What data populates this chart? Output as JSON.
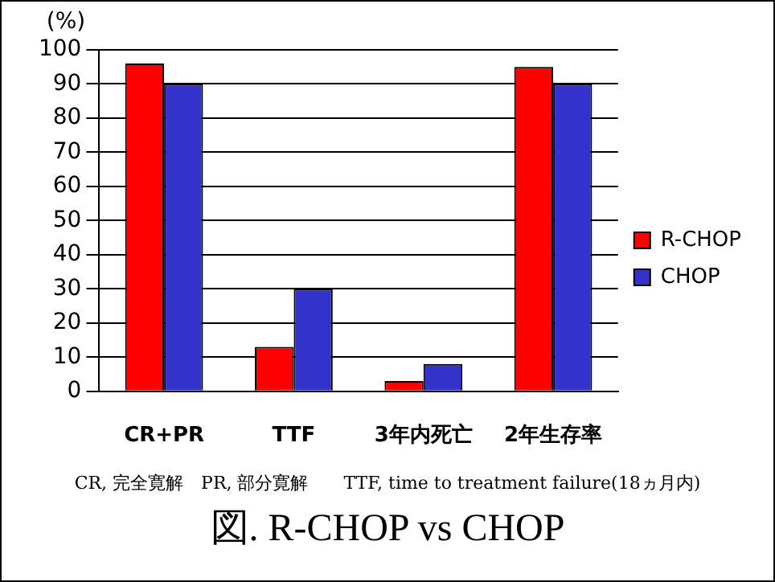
{
  "chart_data": {
    "type": "bar",
    "title": "図. R-CHOP vs CHOP",
    "ylabel": "(%)",
    "categories": [
      "CR+PR",
      "TTF",
      "3年内死亡",
      "2年生存率"
    ],
    "series": [
      {
        "name": "R-CHOP",
        "color": "#ff0000",
        "values": [
          96,
          13,
          3,
          95
        ]
      },
      {
        "name": "CHOP",
        "color": "#3333cc",
        "values": [
          90,
          30,
          8,
          90
        ]
      }
    ],
    "ylim": [
      0,
      100
    ],
    "yticks": [
      0,
      10,
      20,
      30,
      40,
      50,
      60,
      70,
      80,
      90,
      100
    ],
    "grid": "y",
    "legend": "right",
    "annotations": [
      "CR, 完全寛解　PR, 部分寛解　　TTF, time to treatment failure(18ヵ月内)"
    ]
  }
}
